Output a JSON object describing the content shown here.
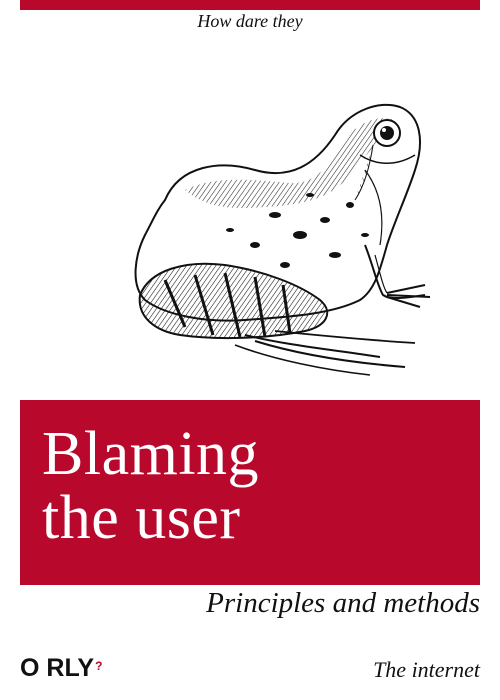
{
  "cover": {
    "accent_color": "#b8092c",
    "tagline": "How dare they",
    "animal": "frog-illustration",
    "title": "Blaming\nthe user",
    "subtitle": "Principles and methods",
    "publisher": "O RLY",
    "publisher_mark": "?",
    "author": "The internet"
  }
}
